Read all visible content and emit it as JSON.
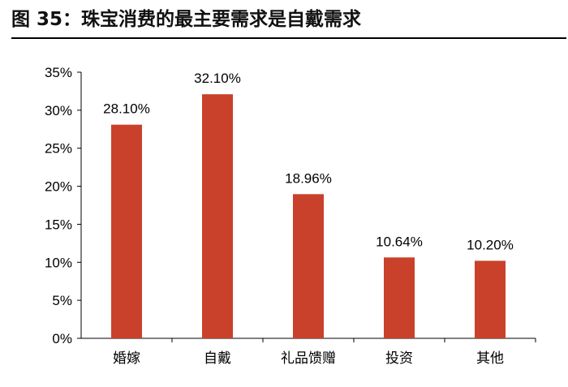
{
  "figure": {
    "title": "图 35：珠宝消费的最主要需求是自戴需求"
  },
  "chart_data": {
    "type": "bar",
    "title": "",
    "xlabel": "",
    "ylabel": "",
    "categories": [
      "婚嫁",
      "自戴",
      "礼品馈赠",
      "投资",
      "其他"
    ],
    "values": [
      28.1,
      32.1,
      18.96,
      10.64,
      10.2
    ],
    "data_labels": [
      "28.10%",
      "32.10%",
      "18.96%",
      "10.64%",
      "10.20%"
    ],
    "ylim": [
      0,
      35
    ],
    "yticks": [
      0,
      5,
      10,
      15,
      20,
      25,
      30,
      35
    ],
    "ytick_labels": [
      "0%",
      "5%",
      "10%",
      "15%",
      "20%",
      "25%",
      "30%",
      "35%"
    ],
    "bar_color": "#C9412A",
    "grid": false,
    "legend": "none"
  }
}
